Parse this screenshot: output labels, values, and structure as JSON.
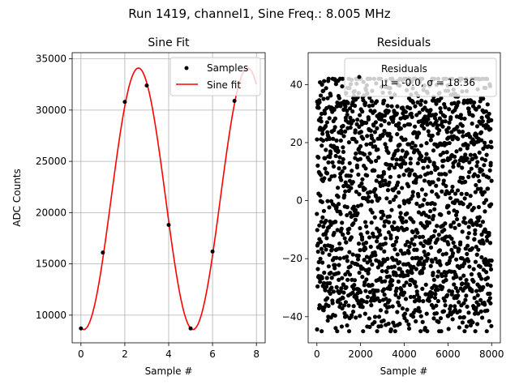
{
  "suptitle": "Run 1419, channel1, Sine Freq.: 8.005 MHz",
  "colors": {
    "fit": "#ff0000",
    "samples": "#000000",
    "grid": "#b0b0b0"
  },
  "chart_data": [
    {
      "type": "line",
      "title": "Sine Fit",
      "xlabel": "Sample #",
      "ylabel": "ADC Counts",
      "xlim": [
        -0.4,
        8.4
      ],
      "ylim": [
        7300,
        35600
      ],
      "xticks": [
        "0",
        "2",
        "4",
        "6",
        "8"
      ],
      "yticks": [
        "10000",
        "15000",
        "20000",
        "25000",
        "30000",
        "35000"
      ],
      "grid": true,
      "legend_position": "top-right",
      "legend": [
        "Samples",
        "Sine fit"
      ],
      "series": [
        {
          "name": "Samples",
          "kind": "scatter",
          "x": [
            0,
            1,
            2,
            3,
            4,
            5,
            6,
            7
          ],
          "y": [
            8700,
            16100,
            30800,
            32400,
            18800,
            8700,
            16200,
            30900
          ]
        },
        {
          "name": "Sine fit",
          "kind": "line",
          "offset": 21350,
          "amplitude": 12750,
          "peak_x": 2.62,
          "period": 4.98,
          "x_range": [
            0,
            8
          ]
        }
      ]
    },
    {
      "type": "scatter",
      "title": "Residuals",
      "xlabel": "Sample #",
      "ylabel": "",
      "xlim": [
        -400,
        8400
      ],
      "ylim": [
        -49,
        51
      ],
      "xticks": [
        "0",
        "2000",
        "4000",
        "6000",
        "8000"
      ],
      "yticks": [
        "−40",
        "−20",
        "0",
        "20",
        "40"
      ],
      "grid": false,
      "legend_position": "top-right",
      "legend": [
        "Residuals",
        "μ = -0.0, σ = 18.36"
      ],
      "series": [
        {
          "name": "Residuals",
          "n_points": 8000,
          "mean": -0.0,
          "std": 18.36,
          "range": [
            -45,
            42
          ],
          "x_range": [
            0,
            8000
          ]
        }
      ]
    }
  ]
}
